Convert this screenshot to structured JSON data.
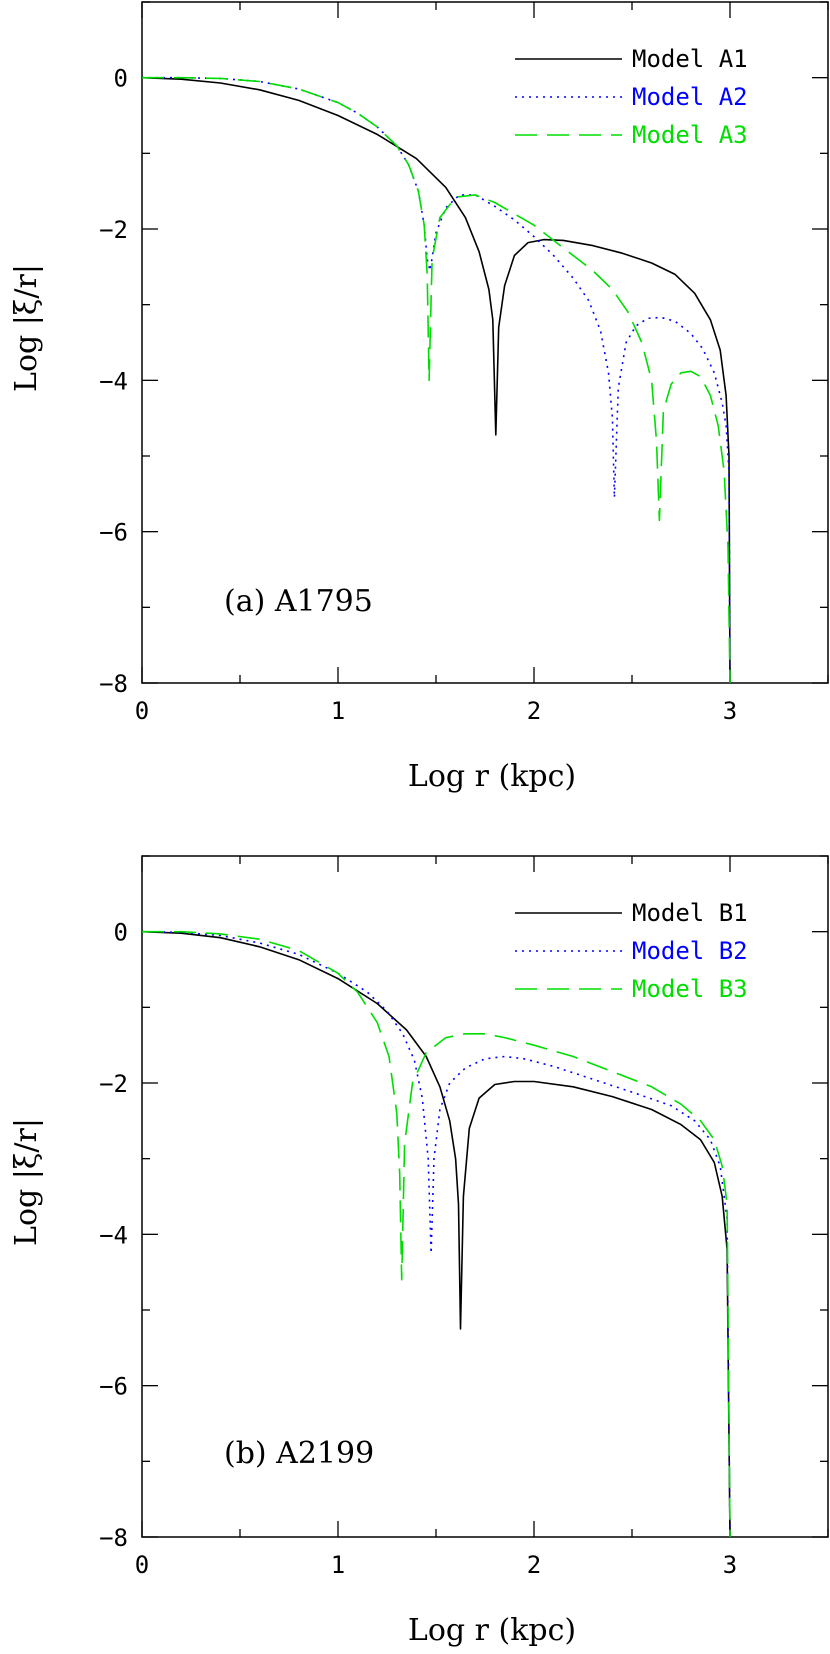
{
  "colors": {
    "axes": "#000000",
    "model_1": "#000000",
    "model_2": "#0000ff",
    "model_3": "#00dd00"
  },
  "chart_data": [
    {
      "type": "line",
      "panel_label": "(a) A1795",
      "xlabel": "Log r (kpc)",
      "ylabel": "Log |ξ/r|",
      "xlim": [
        0,
        3.5
      ],
      "ylim": [
        -8,
        1
      ],
      "xticks": [
        0,
        1,
        2,
        3
      ],
      "yticks": [
        0,
        -2,
        -4,
        -6,
        -8
      ],
      "xtick_labels": [
        "0",
        "1",
        "2",
        "3"
      ],
      "ytick_labels": [
        "0",
        "−2",
        "−4",
        "−6",
        "−8"
      ],
      "legend_position": "top-right",
      "series": [
        {
          "name": "Model A1",
          "style": "solid",
          "color": "#000000",
          "x": [
            0,
            0.2,
            0.4,
            0.6,
            0.8,
            1.0,
            1.2,
            1.4,
            1.55,
            1.65,
            1.72,
            1.77,
            1.79,
            1.805,
            1.82,
            1.85,
            1.9,
            1.97,
            2.05,
            2.15,
            2.3,
            2.45,
            2.6,
            2.72,
            2.82,
            2.9,
            2.95,
            2.98,
            2.995,
            3.0
          ],
          "y": [
            0,
            -0.02,
            -0.07,
            -0.16,
            -0.3,
            -0.5,
            -0.75,
            -1.07,
            -1.45,
            -1.85,
            -2.3,
            -2.8,
            -3.2,
            -4.72,
            -3.3,
            -2.75,
            -2.35,
            -2.18,
            -2.14,
            -2.15,
            -2.22,
            -2.32,
            -2.45,
            -2.6,
            -2.85,
            -3.2,
            -3.6,
            -4.2,
            -5.0,
            -8.0
          ]
        },
        {
          "name": "Model A2",
          "style": "dotted",
          "color": "#0000ff",
          "x": [
            0,
            0.2,
            0.4,
            0.6,
            0.8,
            1.0,
            1.1,
            1.2,
            1.3,
            1.36,
            1.41,
            1.44,
            1.455,
            1.47,
            1.5,
            1.55,
            1.62,
            1.7,
            1.8,
            1.9,
            2.0,
            2.1,
            2.2,
            2.28,
            2.34,
            2.38,
            2.4,
            2.41,
            2.43,
            2.47,
            2.52,
            2.58,
            2.65,
            2.72,
            2.8,
            2.86,
            2.92,
            2.96,
            2.98,
            2.995,
            3.0
          ],
          "y": [
            0,
            0,
            -0.01,
            -0.05,
            -0.15,
            -0.33,
            -0.47,
            -0.65,
            -0.9,
            -1.15,
            -1.5,
            -1.95,
            -2.4,
            -2.55,
            -2.05,
            -1.72,
            -1.55,
            -1.55,
            -1.7,
            -1.88,
            -2.1,
            -2.35,
            -2.65,
            -2.95,
            -3.35,
            -3.9,
            -4.5,
            -5.55,
            -4.1,
            -3.5,
            -3.28,
            -3.18,
            -3.17,
            -3.22,
            -3.38,
            -3.58,
            -3.9,
            -4.3,
            -4.6,
            -5.2,
            -8.0
          ]
        },
        {
          "name": "Model A3",
          "style": "dashed",
          "color": "#00dd00",
          "x": [
            0,
            0.2,
            0.4,
            0.6,
            0.8,
            1.0,
            1.1,
            1.2,
            1.3,
            1.36,
            1.41,
            1.44,
            1.455,
            1.465,
            1.48,
            1.52,
            1.6,
            1.7,
            1.8,
            1.9,
            2.0,
            2.1,
            2.2,
            2.3,
            2.4,
            2.48,
            2.55,
            2.6,
            2.625,
            2.64,
            2.66,
            2.7,
            2.75,
            2.8,
            2.85,
            2.9,
            2.94,
            2.97,
            2.99,
            3.0
          ],
          "y": [
            0,
            0,
            -0.01,
            -0.05,
            -0.15,
            -0.33,
            -0.47,
            -0.65,
            -0.9,
            -1.15,
            -1.5,
            -1.95,
            -2.6,
            -4.0,
            -2.4,
            -1.85,
            -1.58,
            -1.55,
            -1.65,
            -1.8,
            -1.95,
            -2.15,
            -2.35,
            -2.55,
            -2.8,
            -3.1,
            -3.5,
            -4.0,
            -4.8,
            -5.85,
            -4.4,
            -4.05,
            -3.9,
            -3.88,
            -3.95,
            -4.2,
            -4.6,
            -5.2,
            -6.2,
            -8.0
          ]
        }
      ]
    },
    {
      "type": "line",
      "panel_label": "(b) A2199",
      "xlabel": "Log r (kpc)",
      "ylabel": "Log |ξ/r|",
      "xlim": [
        0,
        3.5
      ],
      "ylim": [
        -8,
        1
      ],
      "xticks": [
        0,
        1,
        2,
        3
      ],
      "yticks": [
        0,
        -2,
        -4,
        -6,
        -8
      ],
      "xtick_labels": [
        "0",
        "1",
        "2",
        "3"
      ],
      "ytick_labels": [
        "0",
        "−2",
        "−4",
        "−6",
        "−8"
      ],
      "legend_position": "top-right",
      "series": [
        {
          "name": "Model B1",
          "style": "solid",
          "color": "#000000",
          "x": [
            0,
            0.2,
            0.4,
            0.6,
            0.8,
            1.0,
            1.2,
            1.35,
            1.45,
            1.52,
            1.57,
            1.6,
            1.615,
            1.625,
            1.64,
            1.67,
            1.72,
            1.8,
            1.9,
            2.0,
            2.2,
            2.4,
            2.6,
            2.75,
            2.85,
            2.92,
            2.96,
            2.985,
            3.0
          ],
          "y": [
            0,
            -0.02,
            -0.08,
            -0.2,
            -0.37,
            -0.62,
            -0.95,
            -1.3,
            -1.65,
            -2.05,
            -2.5,
            -3.0,
            -3.6,
            -5.25,
            -3.5,
            -2.6,
            -2.2,
            -2.02,
            -1.98,
            -1.98,
            -2.05,
            -2.18,
            -2.35,
            -2.55,
            -2.75,
            -3.05,
            -3.5,
            -4.2,
            -8.0
          ]
        },
        {
          "name": "Model B2",
          "style": "dotted",
          "color": "#0000ff",
          "x": [
            0,
            0.2,
            0.4,
            0.6,
            0.8,
            1.0,
            1.15,
            1.25,
            1.33,
            1.39,
            1.43,
            1.46,
            1.475,
            1.49,
            1.52,
            1.57,
            1.65,
            1.75,
            1.85,
            1.95,
            2.1,
            2.3,
            2.5,
            2.7,
            2.82,
            2.9,
            2.95,
            2.985,
            3.0
          ],
          "y": [
            0,
            -0.01,
            -0.05,
            -0.15,
            -0.3,
            -0.55,
            -0.8,
            -1.05,
            -1.35,
            -1.7,
            -2.2,
            -3.0,
            -4.25,
            -3.0,
            -2.35,
            -2.0,
            -1.8,
            -1.68,
            -1.65,
            -1.68,
            -1.78,
            -1.95,
            -2.12,
            -2.3,
            -2.5,
            -2.75,
            -3.1,
            -3.8,
            -8.0
          ]
        },
        {
          "name": "Model B3",
          "style": "dashed",
          "color": "#00dd00",
          "x": [
            0,
            0.2,
            0.4,
            0.6,
            0.8,
            1.0,
            1.1,
            1.2,
            1.26,
            1.3,
            1.315,
            1.325,
            1.34,
            1.38,
            1.45,
            1.55,
            1.65,
            1.75,
            1.85,
            2.0,
            2.2,
            2.4,
            2.6,
            2.75,
            2.85,
            2.92,
            2.96,
            2.985,
            3.0
          ],
          "y": [
            0,
            0,
            -0.03,
            -0.1,
            -0.25,
            -0.55,
            -0.8,
            -1.2,
            -1.65,
            -2.4,
            -3.2,
            -4.6,
            -2.8,
            -2.0,
            -1.6,
            -1.4,
            -1.35,
            -1.35,
            -1.4,
            -1.5,
            -1.65,
            -1.85,
            -2.05,
            -2.28,
            -2.5,
            -2.75,
            -3.1,
            -3.6,
            -8.0
          ]
        }
      ]
    }
  ]
}
